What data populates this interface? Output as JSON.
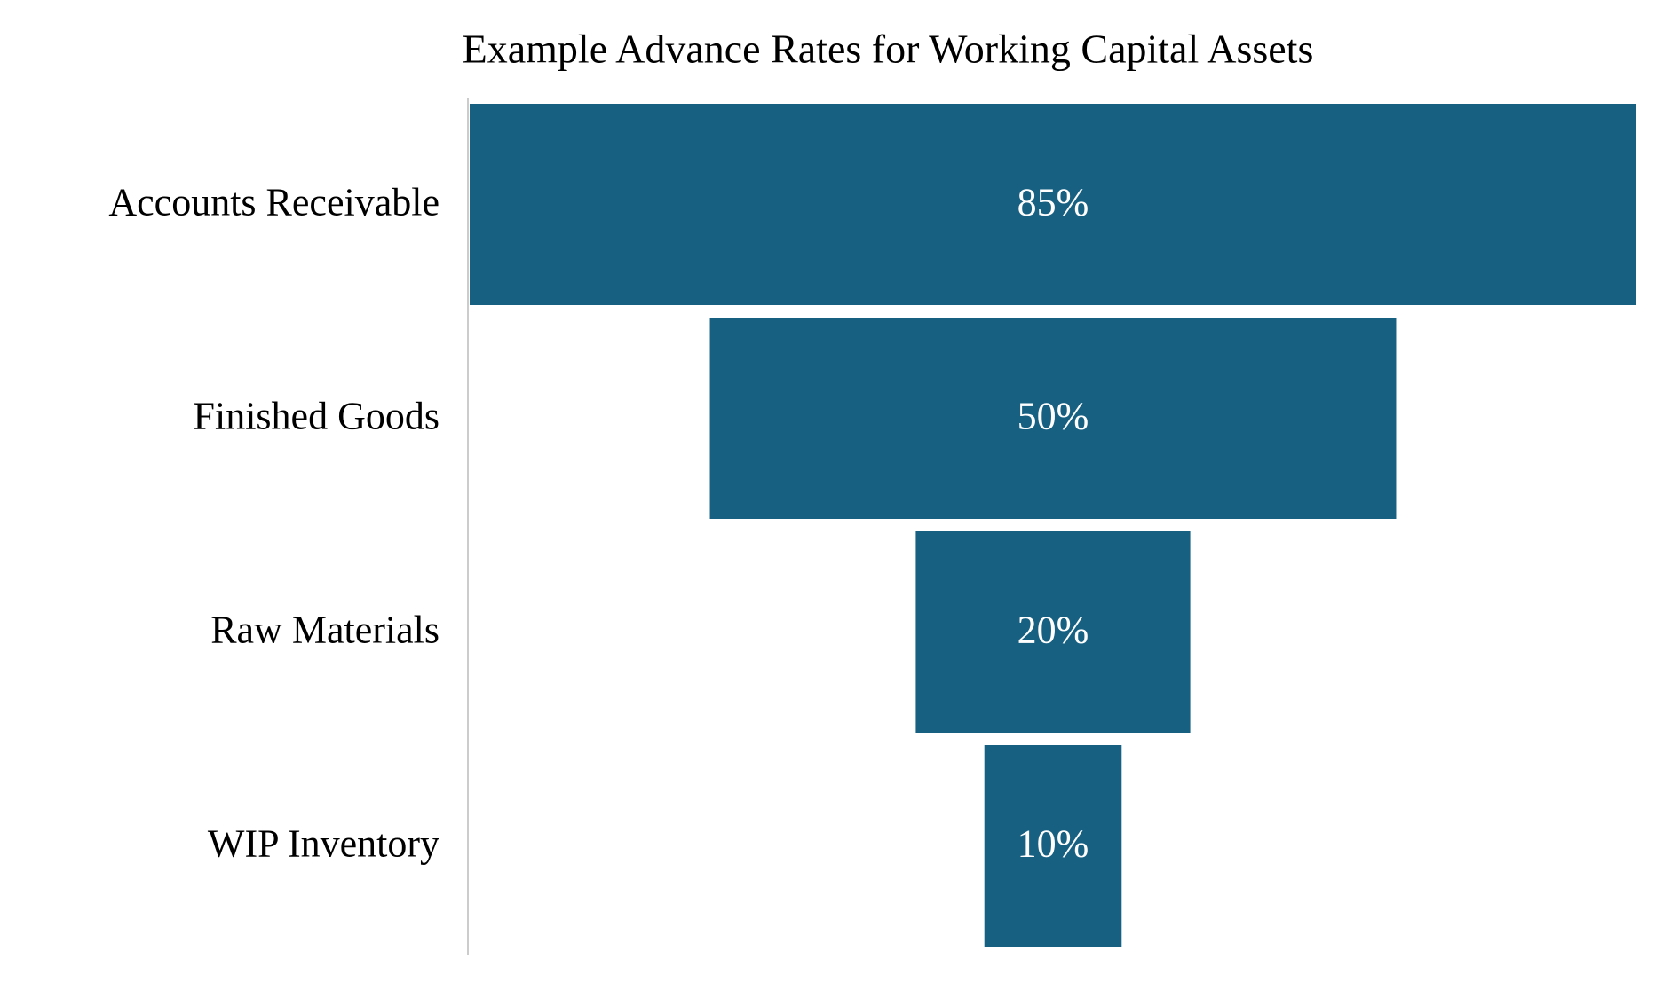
{
  "chart_data": {
    "type": "funnel",
    "title": "Example Advance Rates for Working Capital Assets",
    "categories": [
      "Accounts Receivable",
      "Finished Goods",
      "Raw Materials",
      "WIP Inventory"
    ],
    "values": [
      85,
      50,
      20,
      10
    ],
    "value_labels": [
      "85%",
      "50%",
      "20%",
      "10%"
    ],
    "color": "#176082"
  }
}
